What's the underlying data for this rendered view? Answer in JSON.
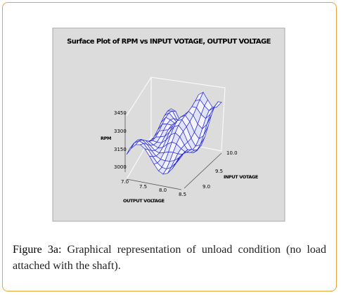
{
  "figure": {
    "plot": {
      "title": "Surface Plot of RPM vs INPUT VOTAGE, OUTPUT VOLTAGE",
      "z_label": "RPM",
      "z_ticks": [
        "3450",
        "3300",
        "3150",
        "3000"
      ],
      "x_label": "OUTPUT VOLTAGE",
      "x_ticks": [
        "7.0",
        "7.5",
        "8.0",
        "8.5"
      ],
      "y_label": "INPUT VOTAGE",
      "y_ticks": [
        "9.0",
        "9.5",
        "10.0"
      ]
    },
    "caption_label": "Figure 3a:",
    "caption_text": "Graphical representation of unload condition (no load attached with the shaft)."
  }
}
